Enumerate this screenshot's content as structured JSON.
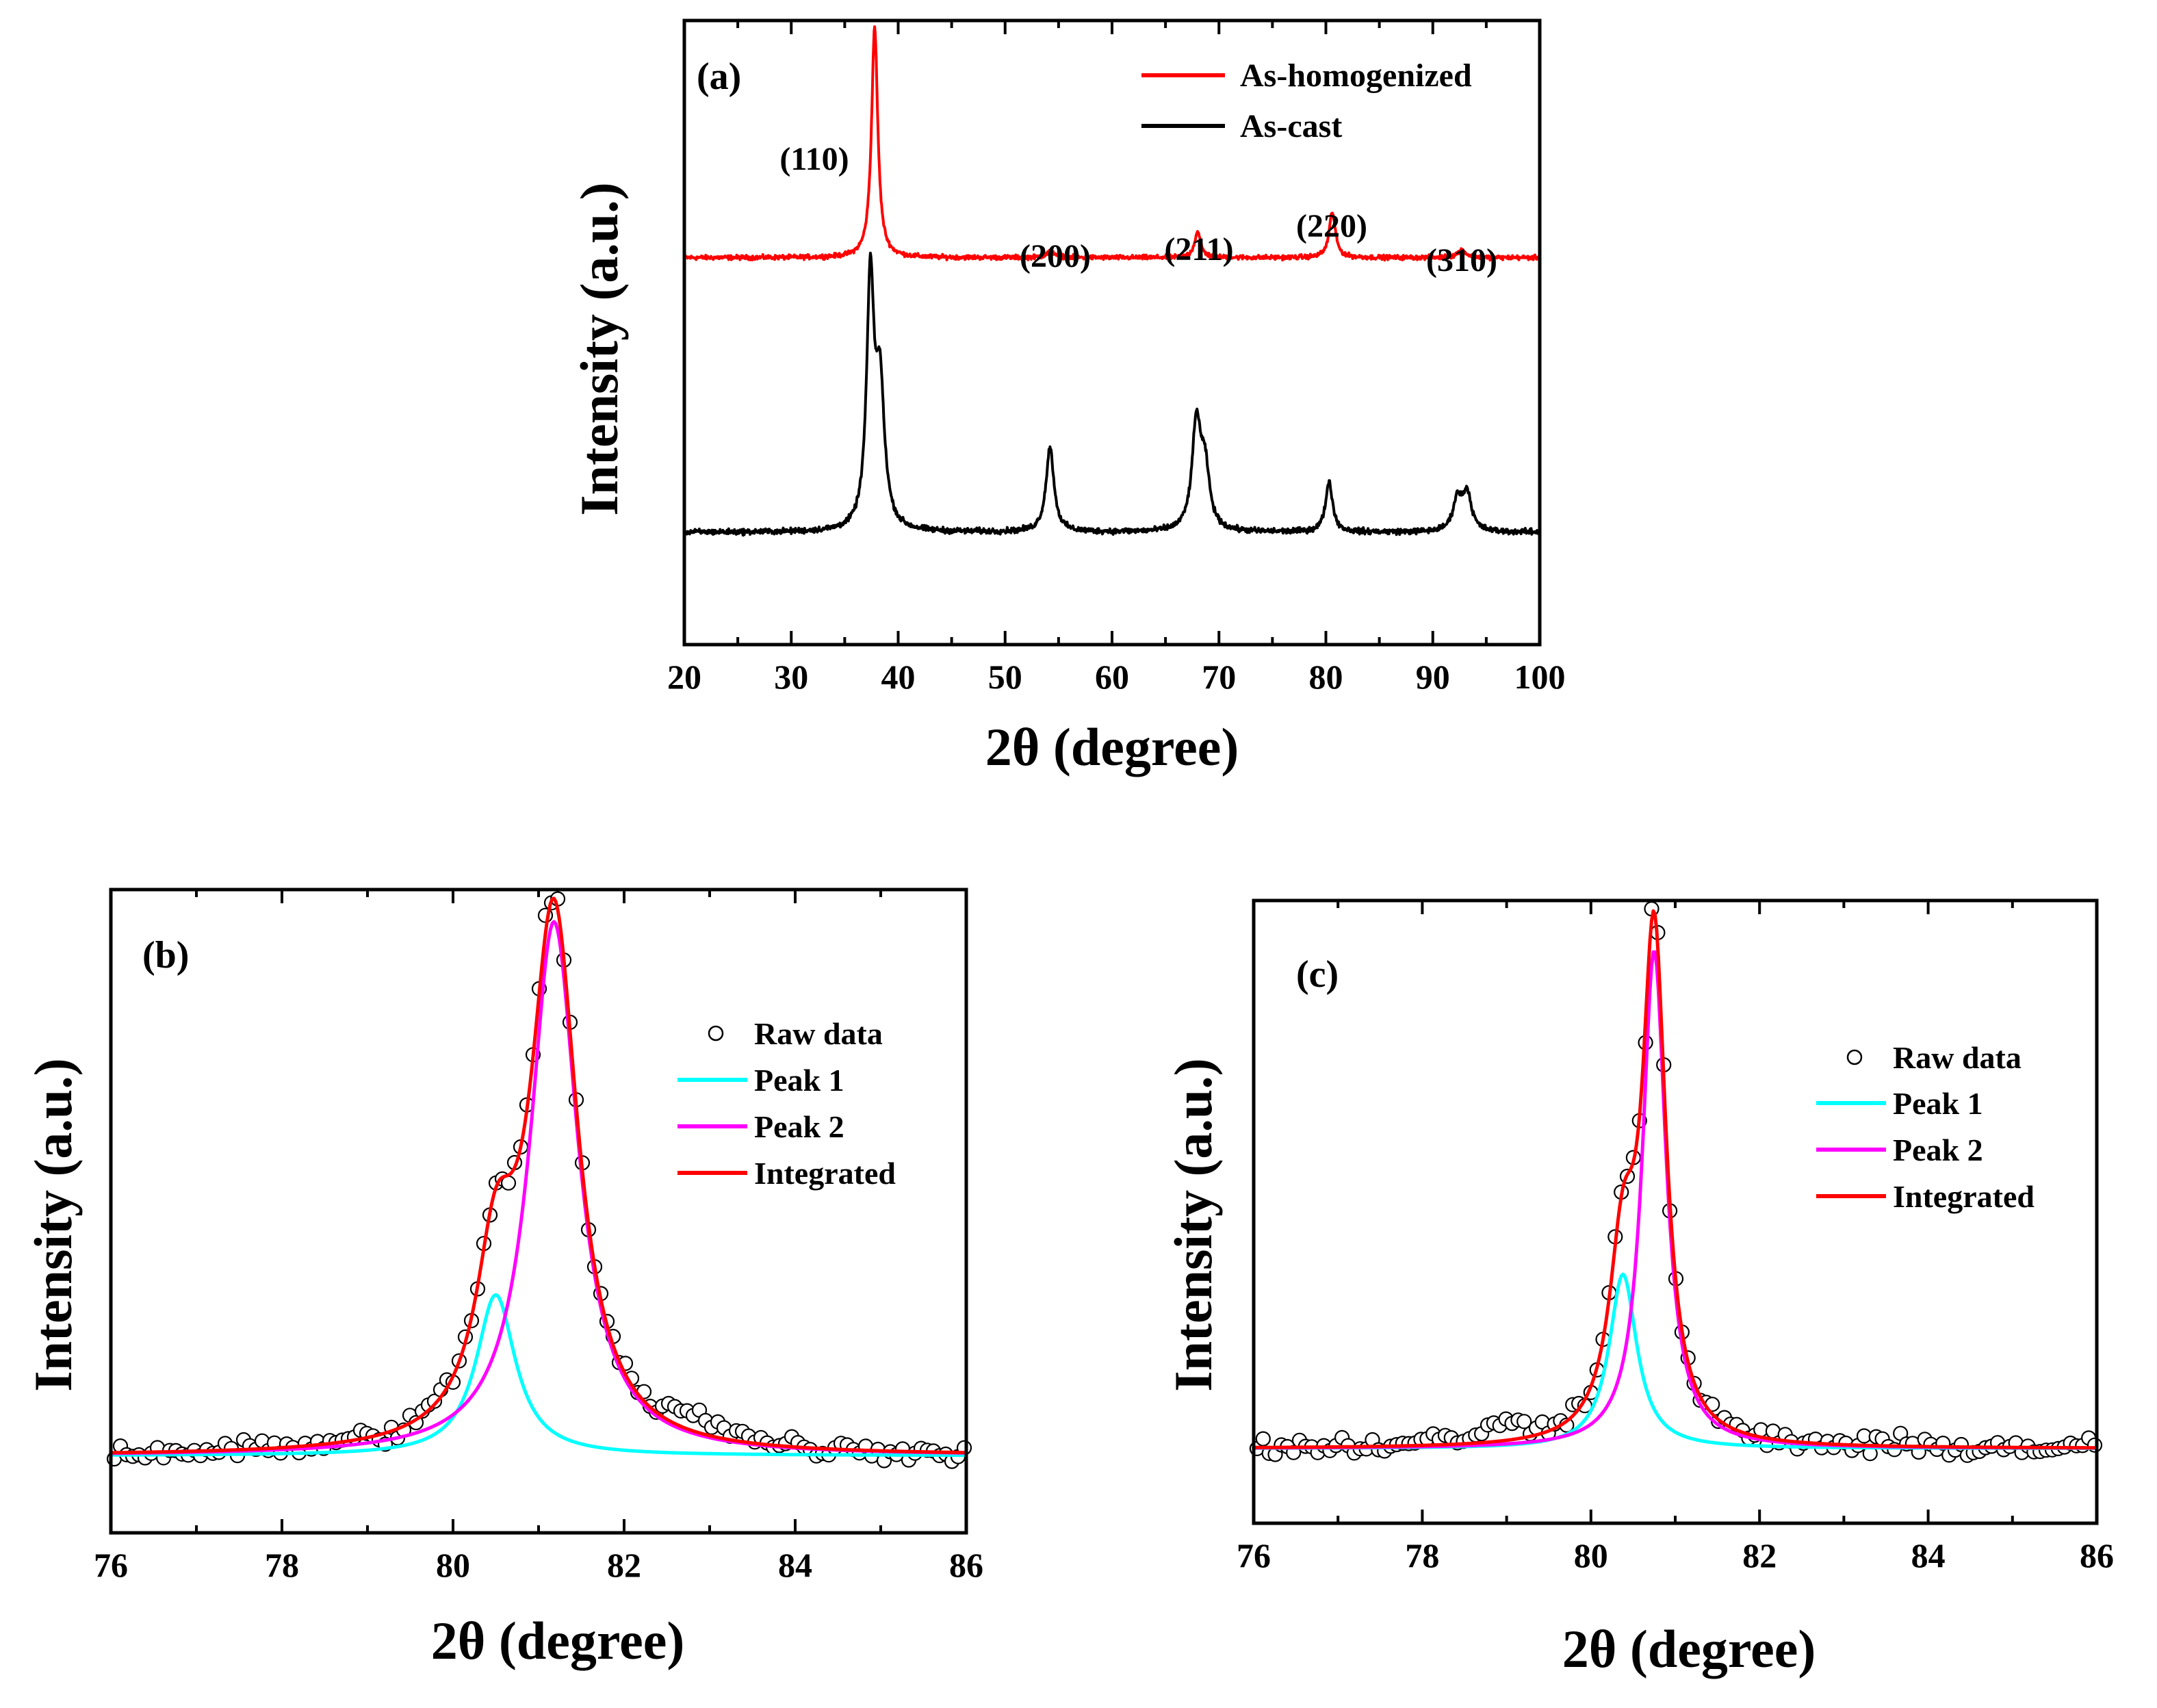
{
  "chart_data": [
    {
      "id": "a",
      "type": "line",
      "panel_label": "(a)",
      "xlabel": "2θ (degree)",
      "ylabel": "Intensity (a.u.)",
      "xlim": [
        20,
        100
      ],
      "ylim": [
        0,
        100
      ],
      "xticks": [
        20,
        30,
        40,
        50,
        60,
        70,
        80,
        90,
        100
      ],
      "colors": {
        "As-homogenized": "#ff0000",
        "As-cast": "#000000"
      },
      "legend": [
        "As-homogenized",
        "As-cast"
      ],
      "annotations": [
        {
          "text": "(110)",
          "x": 37.8
        },
        {
          "text": "(200)",
          "x": 54.3
        },
        {
          "text": "(211)",
          "x": 68.0
        },
        {
          "text": "(220)",
          "x": 80.6
        },
        {
          "text": "(310)",
          "x": 92.7
        }
      ],
      "series": [
        {
          "name": "As-homogenized",
          "baseline": 62,
          "noise": 0.35,
          "peaks": [
            [
              37.8,
              37,
              0.35
            ],
            [
              54.3,
              1.0,
              0.5
            ],
            [
              68.0,
              4.1,
              0.35
            ],
            [
              80.6,
              7.3,
              0.35
            ],
            [
              92.7,
              1.2,
              0.5
            ]
          ]
        },
        {
          "name": "As-cast",
          "baseline": 18,
          "noise": 0.45,
          "peaks": [
            [
              37.4,
              39,
              0.42
            ],
            [
              38.3,
              22,
              0.5
            ],
            [
              54.2,
              13.5,
              0.45
            ],
            [
              67.9,
              17,
              0.5
            ],
            [
              68.7,
              9,
              0.5
            ],
            [
              80.3,
              8,
              0.4
            ],
            [
              92.3,
              5,
              0.5
            ],
            [
              93.2,
              6,
              0.5
            ]
          ]
        }
      ]
    },
    {
      "id": "b",
      "type": "scatter+line",
      "panel_label": "(b)",
      "xlabel": "2θ (degree)",
      "ylabel": "Intensity (a.u.)",
      "xlim": [
        76,
        86
      ],
      "ylim": [
        0,
        100
      ],
      "xticks": [
        76,
        78,
        80,
        82,
        84,
        86
      ],
      "baseline": 12,
      "colors": {
        "Raw data": "#000000",
        "Peak 1": "#00ffff",
        "Peak 2": "#ff00ff",
        "Integrated": "#ff0000"
      },
      "legend": [
        "Raw data",
        "Peak 1",
        "Peak 2",
        "Integrated"
      ],
      "series": [
        {
          "name": "Peak 1",
          "center": 80.5,
          "height": 25,
          "hwhm": 0.28
        },
        {
          "name": "Peak 2",
          "center": 81.18,
          "height": 83,
          "hwhm": 0.34
        }
      ],
      "raw": {
        "noise": 1.6,
        "step": 0.072,
        "shoulder": [
          82.8,
          3.5,
          0.35
        ]
      }
    },
    {
      "id": "c",
      "type": "scatter+line",
      "panel_label": "(c)",
      "xlabel": "2θ (degree)",
      "ylabel": "Intensity (a.u.)",
      "xlim": [
        76,
        86
      ],
      "ylim": [
        0,
        100
      ],
      "xticks": [
        76,
        78,
        80,
        82,
        84,
        86
      ],
      "baseline": 12,
      "colors": {
        "Raw data": "#000000",
        "Peak 1": "#00ffff",
        "Peak 2": "#ff00ff",
        "Integrated": "#ff0000"
      },
      "legend": [
        "Raw data",
        "Peak 1",
        "Peak 2",
        "Integrated"
      ],
      "series": [
        {
          "name": "Peak 1",
          "center": 80.38,
          "height": 28,
          "hwhm": 0.2
        },
        {
          "name": "Peak 2",
          "center": 80.75,
          "height": 80,
          "hwhm": 0.17
        }
      ],
      "raw": {
        "noise": 1.6,
        "step": 0.072,
        "shoulder": [
          79.0,
          2.5,
          0.5
        ]
      }
    }
  ]
}
